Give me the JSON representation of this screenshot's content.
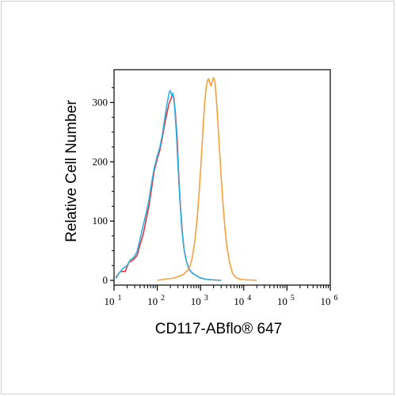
{
  "chart_data": {
    "type": "line",
    "title": "",
    "xlabel": "CD117-ABflo® 647",
    "ylabel": "Relative Cell Number",
    "x_scale": "log",
    "xlim": [
      10,
      1000000
    ],
    "ylim": [
      0,
      350
    ],
    "x_ticks": [
      {
        "base": "10",
        "exp": "1"
      },
      {
        "base": "10",
        "exp": "2"
      },
      {
        "base": "10",
        "exp": "3"
      },
      {
        "base": "10",
        "exp": "4"
      },
      {
        "base": "10",
        "exp": "5"
      },
      {
        "base": "10",
        "exp": "6"
      }
    ],
    "y_ticks": [
      "0",
      "100",
      "200",
      "300"
    ],
    "y_tick_values": [
      0,
      100,
      200,
      300
    ],
    "grid": false,
    "legend": "none",
    "series": [
      {
        "color": "#e8343a",
        "points": [
          [
            11,
            5
          ],
          [
            14,
            15
          ],
          [
            18,
            15
          ],
          [
            22,
            30
          ],
          [
            28,
            35
          ],
          [
            34,
            42
          ],
          [
            40,
            60
          ],
          [
            48,
            80
          ],
          [
            56,
            105
          ],
          [
            64,
            125
          ],
          [
            72,
            150
          ],
          [
            85,
            185
          ],
          [
            100,
            205
          ],
          [
            115,
            220
          ],
          [
            130,
            240
          ],
          [
            150,
            265
          ],
          [
            170,
            285
          ],
          [
            190,
            300
          ],
          [
            205,
            305
          ],
          [
            220,
            312
          ],
          [
            240,
            310
          ],
          [
            260,
            285
          ],
          [
            285,
            245
          ],
          [
            310,
            185
          ],
          [
            340,
            130
          ],
          [
            380,
            80
          ],
          [
            420,
            50
          ],
          [
            480,
            30
          ],
          [
            550,
            18
          ],
          [
            650,
            12
          ],
          [
            800,
            8
          ],
          [
            1000,
            4
          ],
          [
            1300,
            2
          ],
          [
            1800,
            1
          ],
          [
            3000,
            0
          ]
        ]
      },
      {
        "color": "#2fb3e3",
        "points": [
          [
            11,
            3
          ],
          [
            13,
            12
          ],
          [
            16,
            20
          ],
          [
            20,
            25
          ],
          [
            24,
            35
          ],
          [
            28,
            38
          ],
          [
            34,
            48
          ],
          [
            40,
            70
          ],
          [
            48,
            95
          ],
          [
            56,
            115
          ],
          [
            64,
            135
          ],
          [
            72,
            160
          ],
          [
            85,
            190
          ],
          [
            100,
            210
          ],
          [
            115,
            225
          ],
          [
            130,
            245
          ],
          [
            150,
            275
          ],
          [
            170,
            300
          ],
          [
            190,
            318
          ],
          [
            200,
            320
          ],
          [
            215,
            312
          ],
          [
            230,
            316
          ],
          [
            250,
            295
          ],
          [
            275,
            250
          ],
          [
            300,
            195
          ],
          [
            330,
            140
          ],
          [
            370,
            85
          ],
          [
            410,
            55
          ],
          [
            460,
            35
          ],
          [
            520,
            22
          ],
          [
            600,
            15
          ],
          [
            750,
            9
          ],
          [
            950,
            5
          ],
          [
            1250,
            2
          ],
          [
            1800,
            1
          ],
          [
            3000,
            0
          ]
        ]
      },
      {
        "color": "#f5a03a",
        "points": [
          [
            100,
            0
          ],
          [
            150,
            2
          ],
          [
            250,
            4
          ],
          [
            400,
            10
          ],
          [
            550,
            20
          ],
          [
            650,
            40
          ],
          [
            750,
            70
          ],
          [
            850,
            110
          ],
          [
            950,
            160
          ],
          [
            1050,
            210
          ],
          [
            1150,
            260
          ],
          [
            1250,
            300
          ],
          [
            1350,
            325
          ],
          [
            1450,
            338
          ],
          [
            1550,
            340
          ],
          [
            1650,
            332
          ],
          [
            1750,
            328
          ],
          [
            1850,
            335
          ],
          [
            2000,
            342
          ],
          [
            2150,
            335
          ],
          [
            2300,
            310
          ],
          [
            2500,
            270
          ],
          [
            2750,
            220
          ],
          [
            3000,
            175
          ],
          [
            3300,
            130
          ],
          [
            3650,
            90
          ],
          [
            4100,
            55
          ],
          [
            4700,
            30
          ],
          [
            5500,
            12
          ],
          [
            6500,
            5
          ],
          [
            8000,
            2
          ],
          [
            11000,
            1
          ],
          [
            20000,
            0
          ]
        ]
      }
    ]
  }
}
